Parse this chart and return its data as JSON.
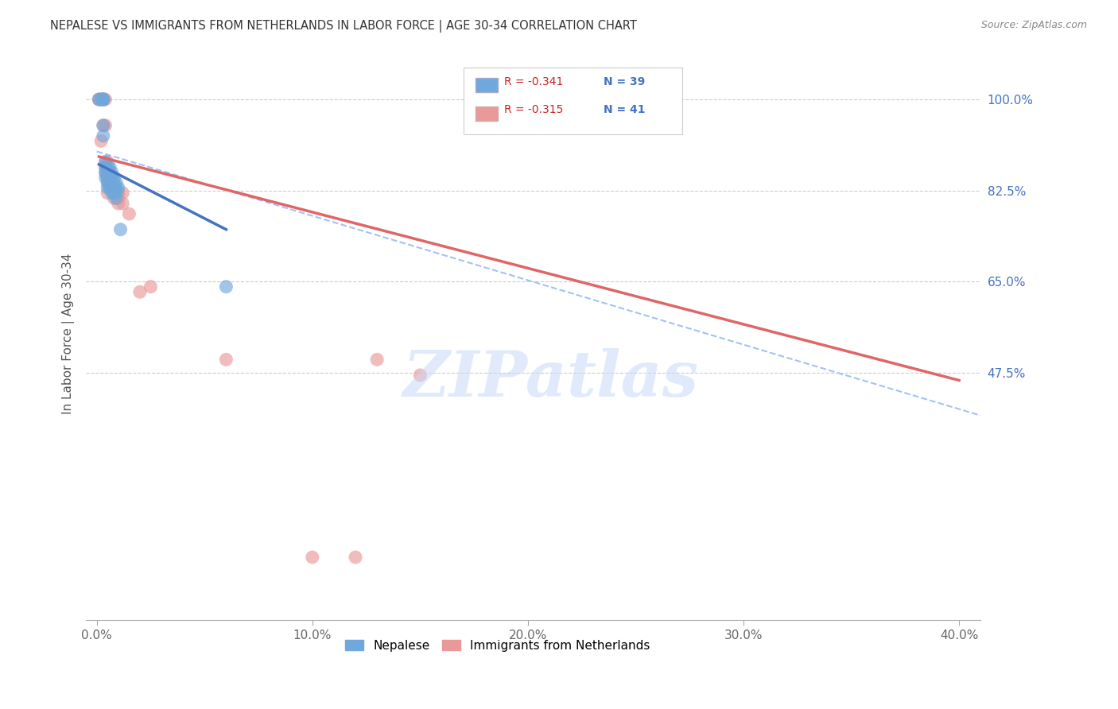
{
  "title": "NEPALESE VS IMMIGRANTS FROM NETHERLANDS IN LABOR FORCE | AGE 30-34 CORRELATION CHART",
  "source": "Source: ZipAtlas.com",
  "xlabel_ticks": [
    "0.0%",
    "10.0%",
    "20.0%",
    "30.0%",
    "40.0%"
  ],
  "xlabel_vals": [
    0.0,
    0.1,
    0.2,
    0.3,
    0.4
  ],
  "ylabel": "In Labor Force | Age 30-34",
  "right_yticks": [
    0.475,
    0.65,
    0.825,
    1.0
  ],
  "right_yticklabels": [
    "47.5%",
    "65.0%",
    "82.5%",
    "100.0%"
  ],
  "ylim": [
    0.0,
    1.1
  ],
  "xlim": [
    -0.005,
    0.41
  ],
  "legend_blue_r": "R = -0.341",
  "legend_blue_n": "N = 39",
  "legend_pink_r": "R = -0.315",
  "legend_pink_n": "N = 41",
  "blue_color": "#6fa8dc",
  "pink_color": "#ea9999",
  "blue_line_color": "#4472c4",
  "pink_line_color": "#e06666",
  "dashed_line_color": "#a4c2f4",
  "watermark": "ZIPatlas",
  "nepalese_x": [
    0.001,
    0.002,
    0.003,
    0.003,
    0.003,
    0.003,
    0.003,
    0.004,
    0.004,
    0.004,
    0.004,
    0.005,
    0.005,
    0.005,
    0.005,
    0.005,
    0.005,
    0.006,
    0.006,
    0.006,
    0.006,
    0.006,
    0.007,
    0.007,
    0.007,
    0.007,
    0.007,
    0.008,
    0.008,
    0.008,
    0.008,
    0.008,
    0.009,
    0.009,
    0.009,
    0.009,
    0.01,
    0.011,
    0.06
  ],
  "nepalese_y": [
    1.0,
    1.0,
    1.0,
    1.0,
    1.0,
    0.95,
    0.93,
    0.88,
    0.87,
    0.86,
    0.85,
    0.87,
    0.86,
    0.85,
    0.85,
    0.84,
    0.83,
    0.87,
    0.86,
    0.85,
    0.84,
    0.83,
    0.86,
    0.85,
    0.84,
    0.83,
    0.82,
    0.85,
    0.84,
    0.83,
    0.83,
    0.82,
    0.84,
    0.83,
    0.82,
    0.81,
    0.83,
    0.75,
    0.64
  ],
  "netherlands_x": [
    0.001,
    0.001,
    0.002,
    0.002,
    0.002,
    0.003,
    0.003,
    0.003,
    0.003,
    0.004,
    0.004,
    0.004,
    0.004,
    0.004,
    0.005,
    0.005,
    0.005,
    0.005,
    0.005,
    0.006,
    0.006,
    0.006,
    0.007,
    0.007,
    0.008,
    0.008,
    0.008,
    0.01,
    0.01,
    0.01,
    0.01,
    0.012,
    0.012,
    0.015,
    0.02,
    0.025,
    0.06,
    0.1,
    0.12,
    0.13,
    0.15
  ],
  "netherlands_y": [
    1.0,
    1.0,
    1.0,
    1.0,
    0.92,
    1.0,
    1.0,
    1.0,
    0.95,
    1.0,
    0.95,
    0.88,
    0.87,
    0.86,
    0.88,
    0.86,
    0.85,
    0.84,
    0.82,
    0.86,
    0.84,
    0.83,
    0.84,
    0.83,
    0.83,
    0.82,
    0.81,
    0.82,
    0.82,
    0.81,
    0.8,
    0.82,
    0.8,
    0.78,
    0.63,
    0.64,
    0.5,
    0.12,
    0.12,
    0.5,
    0.47
  ],
  "blue_line_x": [
    0.001,
    0.06
  ],
  "blue_line_y": [
    0.875,
    0.75
  ],
  "pink_line_x": [
    0.001,
    0.4
  ],
  "pink_line_y": [
    0.89,
    0.46
  ],
  "dashed_line_x": [
    0.0,
    0.42
  ],
  "dashed_line_y": [
    0.9,
    0.38
  ]
}
